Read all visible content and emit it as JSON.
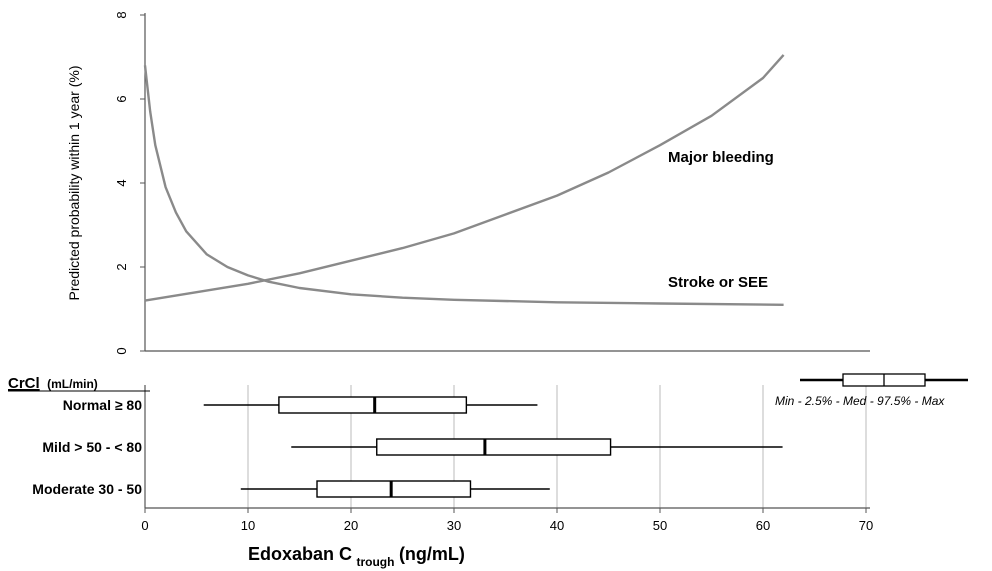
{
  "chart_data": [
    {
      "type": "line",
      "ylabel": "Predicted probability within 1 year (%)",
      "ylim": [
        0,
        8
      ],
      "yticks": [
        "0",
        "2",
        "4",
        "6",
        "8"
      ],
      "xlim": [
        0,
        70
      ],
      "series": [
        {
          "name": "Major bleeding",
          "x": [
            0,
            5,
            10,
            15,
            20,
            25,
            30,
            35,
            40,
            45,
            50,
            55,
            60,
            62
          ],
          "y": [
            1.2,
            1.4,
            1.6,
            1.85,
            2.15,
            2.45,
            2.8,
            3.25,
            3.7,
            4.25,
            4.9,
            5.6,
            6.5,
            7.05
          ]
        },
        {
          "name": "Stroke or SEE",
          "x": [
            0,
            0.5,
            1,
            2,
            3,
            4,
            6,
            8,
            10,
            12,
            15,
            20,
            25,
            30,
            40,
            50,
            62
          ],
          "y": [
            6.8,
            5.7,
            4.9,
            3.9,
            3.3,
            2.85,
            2.3,
            2.0,
            1.8,
            1.65,
            1.5,
            1.35,
            1.27,
            1.22,
            1.16,
            1.13,
            1.1
          ]
        }
      ],
      "grid": false
    },
    {
      "type": "boxplot",
      "category_title": "CrCl",
      "category_title_unit": "(mL/min)",
      "categories": [
        "Normal ≥ 80",
        "Mild > 50 - < 80",
        "Moderate 30 - 50"
      ],
      "boxes": [
        {
          "min": 5.7,
          "q_low": 13,
          "median": 22.3,
          "q_high": 31.2,
          "max": 38.1
        },
        {
          "min": 14.2,
          "q_low": 22.5,
          "median": 33.0,
          "q_high": 45.2,
          "max": 61.9
        },
        {
          "min": 9.3,
          "q_low": 16.7,
          "median": 23.9,
          "q_high": 31.6,
          "max": 39.3
        }
      ],
      "xlim": [
        0,
        70
      ],
      "xticks": [
        "0",
        "10",
        "20",
        "30",
        "40",
        "50",
        "60",
        "70"
      ],
      "xlabel_main": "Edoxaban C",
      "xlabel_sub": "trough",
      "xlabel_unit": " (ng/mL)",
      "grid": true,
      "legend": {
        "text": "Min - 2.5% - Med - 97.5% - Max",
        "position": "top-right"
      }
    }
  ]
}
